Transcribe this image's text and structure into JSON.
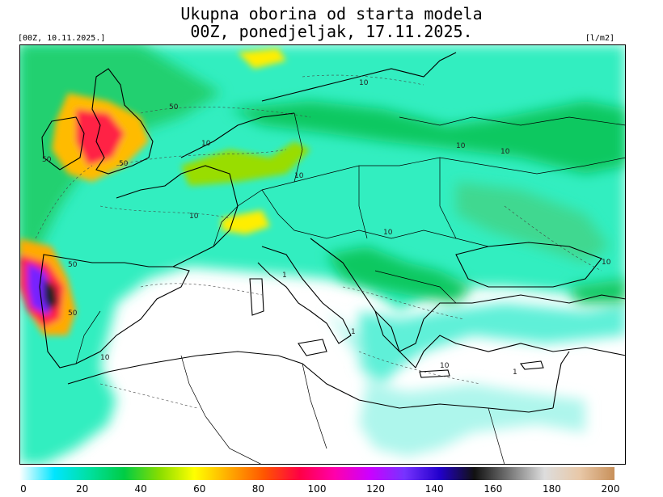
{
  "header": {
    "title_line1": "Ukupna oborina od starta modela",
    "title_line2": "00Z, ponedjeljak, 17.11.2025.",
    "run_label": "[00Z, 10.11.2025.]",
    "units_label": "[l/m2]"
  },
  "map": {
    "contour_labels": [
      "50",
      "50",
      "50",
      "50",
      "50",
      "10",
      "10",
      "10",
      "10",
      "10",
      "10",
      "10",
      "10",
      "1",
      "1",
      "10",
      "10",
      "1"
    ]
  },
  "colorbar": {
    "ticks": [
      "0",
      "20",
      "40",
      "60",
      "80",
      "100",
      "120",
      "140",
      "160",
      "180",
      "200"
    ],
    "colors": [
      "#ffffff",
      "#00e5ff",
      "#00e0a0",
      "#00cc44",
      "#88dd00",
      "#ffff00",
      "#ffaa00",
      "#ff5500",
      "#ff0044",
      "#ff00aa",
      "#cc00ff",
      "#7733ff",
      "#2200cc",
      "#111111",
      "#777777",
      "#dddddd",
      "#e8c8a8",
      "#c8905a"
    ]
  }
}
